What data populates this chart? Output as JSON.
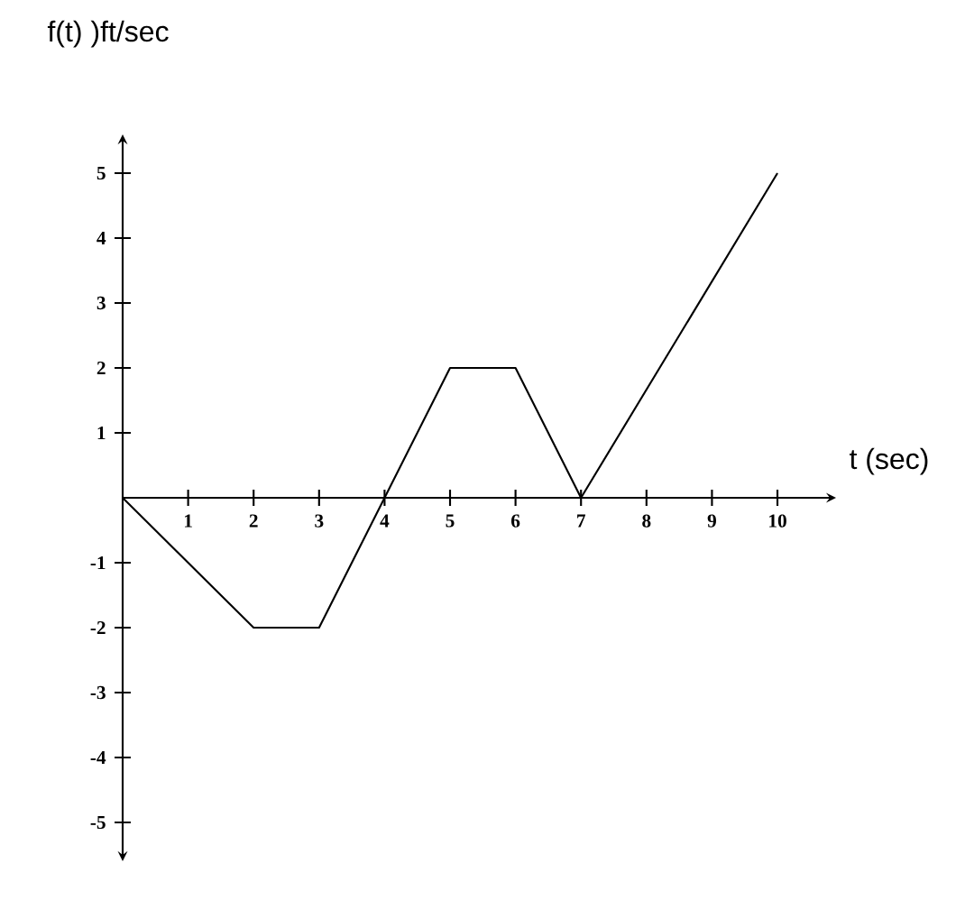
{
  "chart_data": {
    "type": "line",
    "xlabel": "t (sec)",
    "ylabel": "f(t) )ft/sec",
    "x": [
      0,
      2,
      3,
      5,
      6,
      7,
      10
    ],
    "values": [
      0,
      -2,
      -2,
      2,
      2,
      0,
      5
    ],
    "color": "#000000",
    "xlim": [
      0,
      10.8
    ],
    "ylim": [
      -5.5,
      5.5
    ],
    "xticks": [
      1,
      2,
      3,
      4,
      5,
      6,
      7,
      8,
      9,
      10
    ],
    "yticks": [
      -5,
      -4,
      -3,
      -2,
      -1,
      1,
      2,
      3,
      4,
      5
    ],
    "marker": "none",
    "line_style": "solid"
  }
}
